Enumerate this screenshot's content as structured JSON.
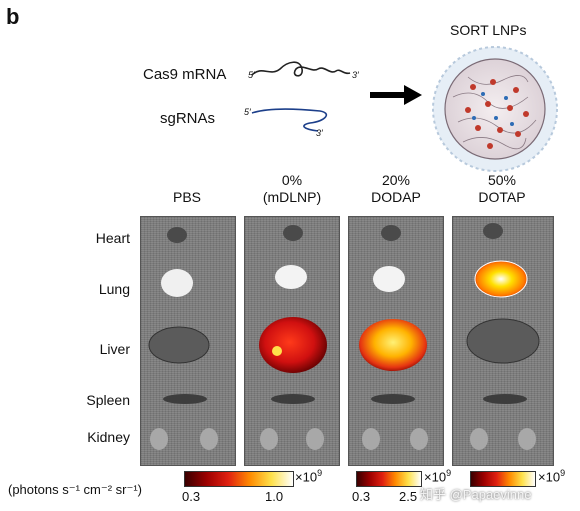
{
  "panel_letter": "b",
  "cargo": {
    "mrna_label": "Cas9 mRNA",
    "sgrna_label": "sgRNAs",
    "five_prime": "5′",
    "three_prime": "3′"
  },
  "sort_title": "SORT LNPs",
  "columns": [
    {
      "line1": "PBS",
      "line2": ""
    },
    {
      "line1": "0%",
      "line2": "(mDLNP)"
    },
    {
      "line1": "20%",
      "line2": "DODAP"
    },
    {
      "line1": "50%",
      "line2": "DOTAP"
    }
  ],
  "organs": [
    "Heart",
    "Lung",
    "Liver",
    "Spleen",
    "Kidney"
  ],
  "scale": {
    "unit_text": "(photons s⁻¹ cm⁻² sr⁻¹)",
    "bars": [
      {
        "min": "0.3",
        "max": "1.0",
        "multiplier": "×10",
        "exp": "9"
      },
      {
        "min": "0.3",
        "max": "2.5",
        "multiplier": "×10",
        "exp": "9"
      },
      {
        "multiplier": "×10",
        "exp": "9"
      }
    ]
  },
  "watermark": "知乎 @Papaevinne",
  "colors": {
    "heat_low": "#3a0000",
    "heat_mid": "#e02010",
    "heat_high": "#ffffff",
    "arrow": "#000000"
  }
}
